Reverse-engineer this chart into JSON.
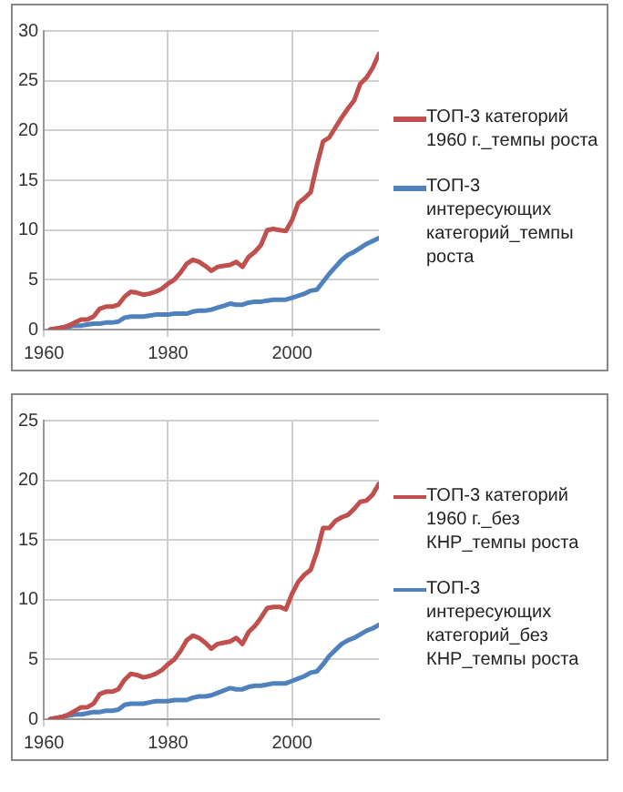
{
  "chart_data": [
    {
      "type": "line",
      "x": [
        1961,
        1962,
        1963,
        1964,
        1965,
        1966,
        1967,
        1968,
        1969,
        1970,
        1971,
        1972,
        1973,
        1974,
        1975,
        1976,
        1977,
        1978,
        1979,
        1980,
        1981,
        1982,
        1983,
        1984,
        1985,
        1986,
        1987,
        1988,
        1989,
        1990,
        1991,
        1992,
        1993,
        1994,
        1995,
        1996,
        1997,
        1998,
        1999,
        2000,
        2001,
        2002,
        2003,
        2004,
        2005,
        2006,
        2007,
        2008,
        2009,
        2010,
        2011,
        2012,
        2013,
        2014
      ],
      "xlim": [
        1960,
        2014
      ],
      "xticks": [
        1960,
        1980,
        2000
      ],
      "ylim": [
        0,
        30
      ],
      "yticks": [
        0,
        5,
        10,
        15,
        20,
        25,
        30
      ],
      "grid": true,
      "legend": "right",
      "series": [
        {
          "name": "ТОП-3 категорий 1960 г._темпы роста",
          "color": "#c0504d",
          "values": [
            0,
            0.1,
            0.2,
            0.4,
            0.7,
            1.0,
            1.0,
            1.3,
            2.1,
            2.3,
            2.3,
            2.5,
            3.3,
            3.8,
            3.7,
            3.5,
            3.6,
            3.8,
            4.1,
            4.6,
            5.0,
            5.7,
            6.6,
            7.0,
            6.8,
            6.4,
            5.9,
            6.3,
            6.4,
            6.5,
            6.8,
            6.3,
            7.3,
            7.8,
            8.5,
            10.0,
            10.1,
            10.0,
            9.9,
            11.0,
            12.7,
            13.2,
            13.8,
            16.5,
            18.9,
            19.3,
            20.3,
            21.3,
            22.2,
            23.0,
            24.7,
            25.3,
            26.3,
            27.7
          ]
        },
        {
          "name": "ТОП-3 интересующих категорий_темпы роста",
          "color": "#4f81bd",
          "values": [
            0,
            0.1,
            0.2,
            0.3,
            0.4,
            0.4,
            0.5,
            0.6,
            0.6,
            0.7,
            0.7,
            0.8,
            1.2,
            1.3,
            1.3,
            1.3,
            1.4,
            1.5,
            1.5,
            1.5,
            1.6,
            1.6,
            1.6,
            1.8,
            1.9,
            1.9,
            2.0,
            2.2,
            2.4,
            2.6,
            2.5,
            2.5,
            2.7,
            2.8,
            2.8,
            2.9,
            3.0,
            3.0,
            3.0,
            3.2,
            3.4,
            3.6,
            3.9,
            4.0,
            4.8,
            5.6,
            6.3,
            7.0,
            7.5,
            7.8,
            8.2,
            8.6,
            8.9,
            9.2
          ]
        }
      ]
    },
    {
      "type": "line",
      "x": [
        1961,
        1962,
        1963,
        1964,
        1965,
        1966,
        1967,
        1968,
        1969,
        1970,
        1971,
        1972,
        1973,
        1974,
        1975,
        1976,
        1977,
        1978,
        1979,
        1980,
        1981,
        1982,
        1983,
        1984,
        1985,
        1986,
        1987,
        1988,
        1989,
        1990,
        1991,
        1992,
        1993,
        1994,
        1995,
        1996,
        1997,
        1998,
        1999,
        2000,
        2001,
        2002,
        2003,
        2004,
        2005,
        2006,
        2007,
        2008,
        2009,
        2010,
        2011,
        2012,
        2013,
        2014
      ],
      "xlim": [
        1960,
        2014
      ],
      "xticks": [
        1960,
        1980,
        2000
      ],
      "ylim": [
        0,
        25
      ],
      "yticks": [
        0,
        5,
        10,
        15,
        20,
        25
      ],
      "grid": true,
      "legend": "right",
      "series": [
        {
          "name": "ТОП-3 категорий 1960 г._без КНР_темпы роста",
          "color": "#c0504d",
          "values": [
            0,
            0.1,
            0.2,
            0.4,
            0.7,
            1.0,
            1.0,
            1.3,
            2.1,
            2.3,
            2.3,
            2.5,
            3.3,
            3.8,
            3.7,
            3.5,
            3.6,
            3.8,
            4.1,
            4.6,
            5.0,
            5.7,
            6.6,
            7.0,
            6.8,
            6.4,
            5.9,
            6.3,
            6.4,
            6.5,
            6.8,
            6.3,
            7.3,
            7.8,
            8.5,
            9.3,
            9.4,
            9.4,
            9.2,
            10.5,
            11.5,
            12.1,
            12.5,
            14.0,
            16.0,
            16.0,
            16.6,
            16.9,
            17.1,
            17.6,
            18.2,
            18.3,
            18.8,
            19.7
          ]
        },
        {
          "name": "ТОП-3 интересующих категорий_без КНР_темпы роста",
          "color": "#4f81bd",
          "values": [
            0,
            0.1,
            0.2,
            0.3,
            0.4,
            0.4,
            0.5,
            0.6,
            0.6,
            0.7,
            0.7,
            0.8,
            1.2,
            1.3,
            1.3,
            1.3,
            1.4,
            1.5,
            1.5,
            1.5,
            1.6,
            1.6,
            1.6,
            1.8,
            1.9,
            1.9,
            2.0,
            2.2,
            2.4,
            2.6,
            2.5,
            2.5,
            2.7,
            2.8,
            2.8,
            2.9,
            3.0,
            3.0,
            3.0,
            3.2,
            3.4,
            3.6,
            3.9,
            4.0,
            4.6,
            5.3,
            5.8,
            6.3,
            6.6,
            6.8,
            7.1,
            7.4,
            7.6,
            7.9
          ]
        }
      ]
    }
  ]
}
